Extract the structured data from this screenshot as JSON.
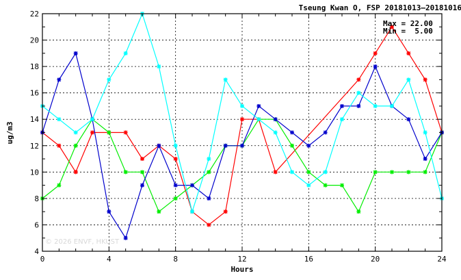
{
  "chart_data": {
    "type": "line",
    "title": "Tseung Kwan O, FSP 20181013–20181016",
    "xlabel": "Hours",
    "ylabel": "ug/m3",
    "xlim": [
      0,
      24
    ],
    "ylim": [
      4,
      22
    ],
    "x_ticks": [
      "0",
      "4",
      "8",
      "12",
      "16",
      "20",
      "24"
    ],
    "y_ticks": [
      "4",
      "6",
      "8",
      "10",
      "12",
      "14",
      "16",
      "18",
      "20",
      "22"
    ],
    "grid": true,
    "stats": {
      "max_label": "Max = 22.00",
      "min_label": "Min =  5.00"
    },
    "watermark": "© 2026  ENVF, HKUST",
    "series": [
      {
        "color": "#ff0000",
        "x": [
          0,
          1,
          2,
          3,
          4,
          5,
          6,
          7,
          8,
          9,
          10,
          11,
          12,
          13,
          14,
          19,
          20,
          21,
          22,
          23,
          24
        ],
        "y": [
          13,
          12,
          10,
          13,
          13,
          13,
          11,
          12,
          11,
          7,
          6,
          7,
          14,
          14,
          10,
          17,
          19,
          21,
          19,
          17,
          13
        ]
      },
      {
        "color": "#00ee00",
        "x": [
          0,
          1,
          2,
          3,
          4,
          5,
          6,
          7,
          8,
          9,
          10,
          11,
          12,
          13,
          14,
          15,
          16,
          17,
          18,
          19,
          20,
          21,
          22,
          23,
          24
        ],
        "y": [
          8,
          9,
          12,
          14,
          13,
          10,
          10,
          7,
          8,
          9,
          10,
          12,
          12,
          14,
          14,
          12,
          10,
          9,
          9,
          7,
          10,
          10,
          10,
          10,
          13
        ]
      },
      {
        "color": "#0000cc",
        "x": [
          0,
          1,
          2,
          3,
          4,
          5,
          6,
          7,
          8,
          9,
          10,
          11,
          12,
          13,
          14,
          15,
          16,
          17,
          18,
          19,
          20,
          21,
          22,
          23,
          24
        ],
        "y": [
          13,
          17,
          19,
          14,
          7,
          5,
          9,
          12,
          9,
          9,
          8,
          12,
          12,
          15,
          14,
          13,
          12,
          13,
          15,
          15,
          18,
          15,
          14,
          11,
          13
        ]
      },
      {
        "color": "#00ffff",
        "x": [
          0,
          1,
          2,
          3,
          4,
          5,
          6,
          7,
          8,
          9,
          10,
          11,
          12,
          13,
          14,
          15,
          16,
          17,
          18,
          19,
          20,
          21,
          22,
          23,
          24
        ],
        "y": [
          15,
          14,
          13,
          14,
          17,
          19,
          22,
          18,
          12,
          7,
          11,
          17,
          15,
          14,
          13,
          10,
          9,
          10,
          14,
          16,
          15,
          15,
          17,
          13,
          8
        ]
      }
    ]
  }
}
